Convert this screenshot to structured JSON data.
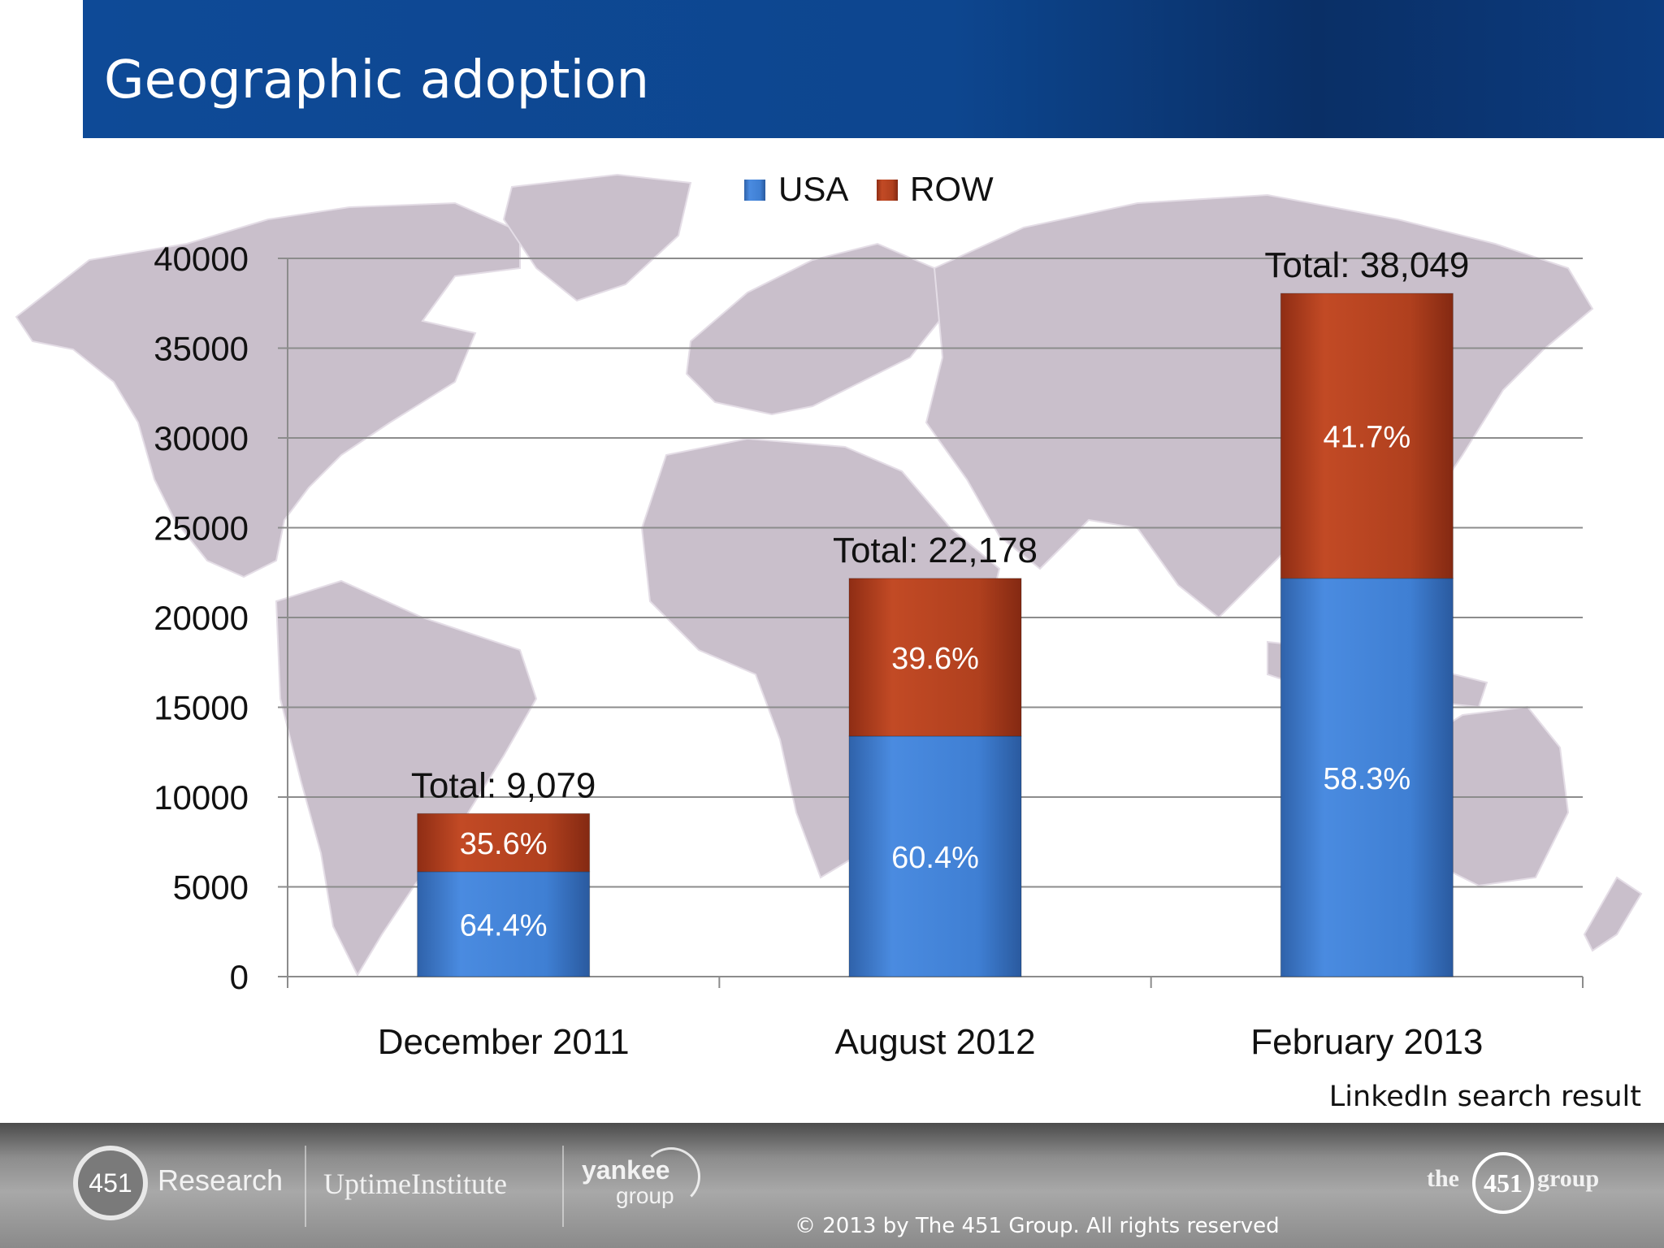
{
  "slide": {
    "title": "Geographic adoption"
  },
  "chart_data": {
    "type": "bar",
    "stacked": true,
    "categories": [
      "December 2011",
      "August 2012",
      "February 2013"
    ],
    "series": [
      {
        "name": "USA",
        "values": [
          5847,
          13396,
          22183
        ],
        "labels": [
          "64.4%",
          "60.4%",
          "58.3%"
        ],
        "color": "#3f7fd3"
      },
      {
        "name": "ROW",
        "values": [
          3232,
          8782,
          15866
        ],
        "labels": [
          "35.6%",
          "39.6%",
          "41.7%"
        ],
        "color": "#b8401f"
      }
    ],
    "totals": [
      "Total: 9,079",
      "Total: 22,178",
      "Total: 38,049"
    ],
    "ylim": [
      0,
      40000
    ],
    "yticks": [
      "0",
      "5000",
      "10000",
      "15000",
      "20000",
      "25000",
      "30000",
      "35000",
      "40000"
    ],
    "grid": true,
    "legend_position": "top-center"
  },
  "source_note": "LinkedIn search result",
  "footer": {
    "logo_451_number": "451",
    "logo_451_word": "Research",
    "logo_uptime": "UptimeInstitute",
    "logo_yankee_top": "yankee",
    "logo_yankee_bottom": "group",
    "logo_group_the": "the",
    "logo_group_number": "451",
    "logo_group_word": "group",
    "copyright": "© 2013 by The 451 Group. All rights reserved"
  },
  "colors": {
    "header": "#0e4a97",
    "usa": "#3f7fd3",
    "row": "#b8401f",
    "map": "#c9bfcb",
    "gridline": "#8c8c8c"
  }
}
